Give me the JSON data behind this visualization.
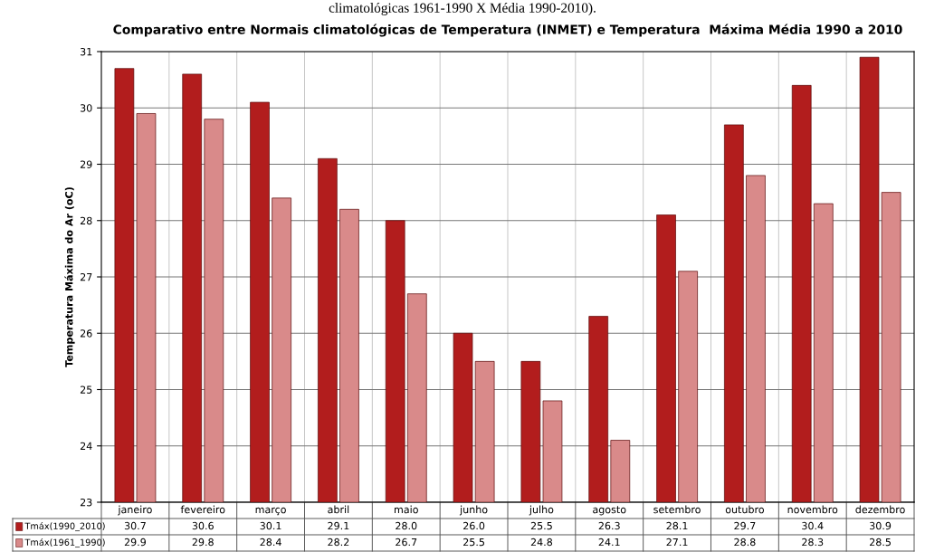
{
  "chart_data": {
    "type": "bar",
    "title": "Comparativo entre Normais climatológicas de Temperatura (INMET) e Temperatura  Máxima Média 1990 a 2010",
    "ylabel": "Temperatura Máxima do Ar (oC)",
    "annotations": [
      "climatológicas 1961-1990 X Média 1990-2010)."
    ],
    "categories": [
      "janeiro",
      "fevereiro",
      "março",
      "abril",
      "maio",
      "junho",
      "julho",
      "agosto",
      "setembro",
      "outubro",
      "novembro",
      "dezembro"
    ],
    "series": [
      {
        "name": "Tmáx(1990_2010)",
        "color": "#b21d1d",
        "values": [
          30.7,
          30.6,
          30.1,
          29.1,
          28.0,
          26.0,
          25.5,
          26.3,
          28.1,
          29.7,
          30.4,
          30.9
        ],
        "value_labels": [
          "30.7",
          "30.6",
          "30.1",
          "29.1",
          "28.0",
          "26.0",
          "25.5",
          "26.3",
          "28.1",
          "29.7",
          "30.4",
          "30.9"
        ]
      },
      {
        "name": "Tmáx(1961_1990)",
        "color": "#d98a8a",
        "values": [
          29.9,
          29.8,
          28.4,
          28.2,
          26.7,
          25.5,
          24.8,
          24.1,
          27.1,
          28.8,
          28.3,
          28.5
        ],
        "value_labels": [
          "29.9",
          "29.8",
          "28.4",
          "28.2",
          "26.7",
          "25.5",
          "24.8",
          "24.1",
          "27.1",
          "28.8",
          "28.3",
          "28.5"
        ]
      }
    ],
    "ylim": [
      23,
      31
    ],
    "yticks": [
      23,
      24,
      25,
      26,
      27,
      28,
      29,
      30,
      31
    ],
    "grid": "y",
    "legend": "bottom left"
  }
}
